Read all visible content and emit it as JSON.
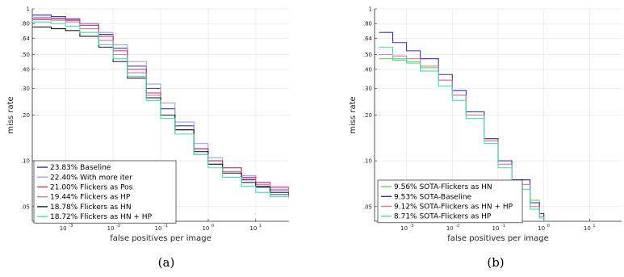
{
  "colors": {
    "baseline": "#3333aa",
    "with_more_iter": "#9aa0e6",
    "flickers_pos": "#b8326b",
    "flickers_hp": "#e0709a",
    "flickers_hn": "#1e1e1e",
    "flickers_hn_hp": "#3ddfb5",
    "sota_flickers_hn": "#6fcf4a",
    "sota_baseline": "#3333aa",
    "sota_flickers_hn_hp": "#e0709a",
    "sota_flickers_hp": "#3ddfb5"
  },
  "chart_data": [
    {
      "type": "line",
      "caption": "(a)",
      "xlabel": "false positives per image",
      "ylabel": "miss rate",
      "xscale": "log",
      "yscale": "log",
      "xlim": [
        0.0002,
        50
      ],
      "ylim": [
        0.04,
        1
      ],
      "grid": true,
      "legend_position": "bottom-left",
      "x_ticks": [
        0.001,
        0.01,
        0.1,
        1,
        10
      ],
      "x_tick_labels": [
        "10",
        "10",
        "10",
        "10",
        "10"
      ],
      "x_tick_exponents": [
        "-3",
        "-2",
        "-1",
        "0",
        "1"
      ],
      "y_ticks": [
        0.05,
        0.1,
        0.2,
        0.3,
        0.4,
        0.5,
        0.64,
        0.8,
        1
      ],
      "y_tick_labels": [
        ".05",
        ".10",
        ".20",
        ".30",
        ".40",
        ".50",
        ".64",
        ".80",
        "1"
      ],
      "series": [
        {
          "name": "23.83% Baseline",
          "color_key": "baseline",
          "x": [
            0.0002,
            0.0005,
            0.001,
            0.002,
            0.005,
            0.01,
            0.02,
            0.05,
            0.1,
            0.2,
            0.5,
            1,
            2,
            5,
            10,
            20,
            50
          ],
          "y": [
            0.91,
            0.89,
            0.86,
            0.8,
            0.68,
            0.55,
            0.42,
            0.3,
            0.22,
            0.17,
            0.12,
            0.1,
            0.085,
            0.075,
            0.068,
            0.06,
            0.058
          ]
        },
        {
          "name": "22.40% With more iter",
          "color_key": "with_more_iter",
          "x": [
            0.0002,
            0.0005,
            0.001,
            0.002,
            0.005,
            0.01,
            0.02,
            0.05,
            0.1,
            0.2,
            0.5,
            1,
            2,
            5,
            10,
            20,
            50
          ],
          "y": [
            0.88,
            0.87,
            0.85,
            0.8,
            0.7,
            0.58,
            0.45,
            0.32,
            0.24,
            0.18,
            0.13,
            0.105,
            0.09,
            0.08,
            0.072,
            0.065,
            0.062
          ]
        },
        {
          "name": "21.00% Flickers as Pos",
          "color_key": "flickers_pos",
          "x": [
            0.0002,
            0.0005,
            0.001,
            0.002,
            0.005,
            0.01,
            0.02,
            0.05,
            0.1,
            0.2,
            0.5,
            1,
            2,
            5,
            10,
            20,
            50
          ],
          "y": [
            0.86,
            0.86,
            0.84,
            0.78,
            0.66,
            0.53,
            0.4,
            0.28,
            0.2,
            0.16,
            0.12,
            0.1,
            0.09,
            0.078,
            0.072,
            0.067,
            0.064
          ]
        },
        {
          "name": "19.44% Flickers as HP",
          "color_key": "flickers_hp",
          "x": [
            0.0002,
            0.0005,
            0.001,
            0.002,
            0.005,
            0.01,
            0.02,
            0.05,
            0.1,
            0.2,
            0.5,
            1,
            2,
            5,
            10,
            20,
            50
          ],
          "y": [
            0.85,
            0.84,
            0.82,
            0.74,
            0.62,
            0.5,
            0.38,
            0.27,
            0.2,
            0.15,
            0.11,
            0.095,
            0.085,
            0.076,
            0.07,
            0.064,
            0.06
          ]
        },
        {
          "name": "18.78% Flickers as HN",
          "color_key": "flickers_hn",
          "x": [
            0.0002,
            0.0005,
            0.001,
            0.002,
            0.005,
            0.01,
            0.02,
            0.05,
            0.1,
            0.2,
            0.5,
            1,
            2,
            5,
            10,
            20,
            50
          ],
          "y": [
            0.76,
            0.74,
            0.72,
            0.66,
            0.56,
            0.45,
            0.35,
            0.26,
            0.2,
            0.16,
            0.115,
            0.095,
            0.083,
            0.072,
            0.067,
            0.062,
            0.06
          ]
        },
        {
          "name": "18.72% Flickers as HN + HP",
          "color_key": "flickers_hn_hp",
          "x": [
            0.0002,
            0.0005,
            0.001,
            0.002,
            0.005,
            0.01,
            0.02,
            0.05,
            0.1,
            0.2,
            0.5,
            1,
            2,
            5,
            10,
            20,
            50
          ],
          "y": [
            0.82,
            0.8,
            0.77,
            0.7,
            0.58,
            0.47,
            0.36,
            0.25,
            0.19,
            0.15,
            0.11,
            0.09,
            0.078,
            0.068,
            0.062,
            0.058,
            0.057
          ]
        }
      ]
    },
    {
      "type": "line",
      "caption": "(b)",
      "xlabel": "false positives per image",
      "ylabel": "miss rate",
      "xscale": "log",
      "yscale": "log",
      "xlim": [
        0.0002,
        50
      ],
      "ylim": [
        0.04,
        1
      ],
      "grid": true,
      "legend_position": "bottom-left",
      "x_ticks": [
        0.001,
        0.01,
        0.1,
        1,
        10
      ],
      "x_tick_labels": [
        "10",
        "10",
        "10",
        "10",
        "10"
      ],
      "x_tick_exponents": [
        "-3",
        "-2",
        "-1",
        "0",
        "1"
      ],
      "y_ticks": [
        0.05,
        0.1,
        0.2,
        0.3,
        0.4,
        0.5,
        0.64,
        0.8,
        1
      ],
      "y_tick_labels": [
        ".05",
        ".10",
        ".20",
        ".30",
        ".40",
        ".50",
        ".64",
        ".80",
        "1"
      ],
      "series": [
        {
          "name": "9.56% SOTA-Flickers as HN",
          "color_key": "sota_flickers_hn",
          "x": [
            0.00025,
            0.0005,
            0.001,
            0.002,
            0.005,
            0.01,
            0.02,
            0.05,
            0.1,
            0.2,
            0.5,
            0.8,
            1.0
          ],
          "y": [
            0.47,
            0.46,
            0.45,
            0.41,
            0.34,
            0.27,
            0.2,
            0.14,
            0.1,
            0.075,
            0.055,
            0.045,
            0.04
          ]
        },
        {
          "name": "9.53% SOTA-Baseline",
          "color_key": "sota_baseline",
          "x": [
            0.00025,
            0.0005,
            0.001,
            0.002,
            0.005,
            0.01,
            0.02,
            0.05,
            0.1,
            0.2,
            0.5,
            0.8,
            1.0
          ],
          "y": [
            0.7,
            0.6,
            0.53,
            0.47,
            0.37,
            0.29,
            0.21,
            0.14,
            0.1,
            0.075,
            0.053,
            0.045,
            0.04
          ]
        },
        {
          "name": "9.12% SOTA-Flickers as HN + HP",
          "color_key": "sota_flickers_hn_hp",
          "x": [
            0.00025,
            0.0005,
            0.001,
            0.002,
            0.005,
            0.01,
            0.02,
            0.05,
            0.1,
            0.2,
            0.5,
            0.8,
            1.0
          ],
          "y": [
            0.5,
            0.49,
            0.47,
            0.42,
            0.34,
            0.27,
            0.2,
            0.135,
            0.095,
            0.07,
            0.05,
            0.043,
            0.04
          ]
        },
        {
          "name": "8.71% SOTA-Flickers as HP",
          "color_key": "sota_flickers_hp",
          "x": [
            0.00025,
            0.0005,
            0.001,
            0.002,
            0.005,
            0.01,
            0.02,
            0.05,
            0.1,
            0.2,
            0.5,
            0.8,
            1.0
          ],
          "y": [
            0.56,
            0.47,
            0.44,
            0.39,
            0.31,
            0.25,
            0.19,
            0.13,
            0.09,
            0.065,
            0.048,
            0.042,
            0.04
          ]
        }
      ]
    }
  ]
}
